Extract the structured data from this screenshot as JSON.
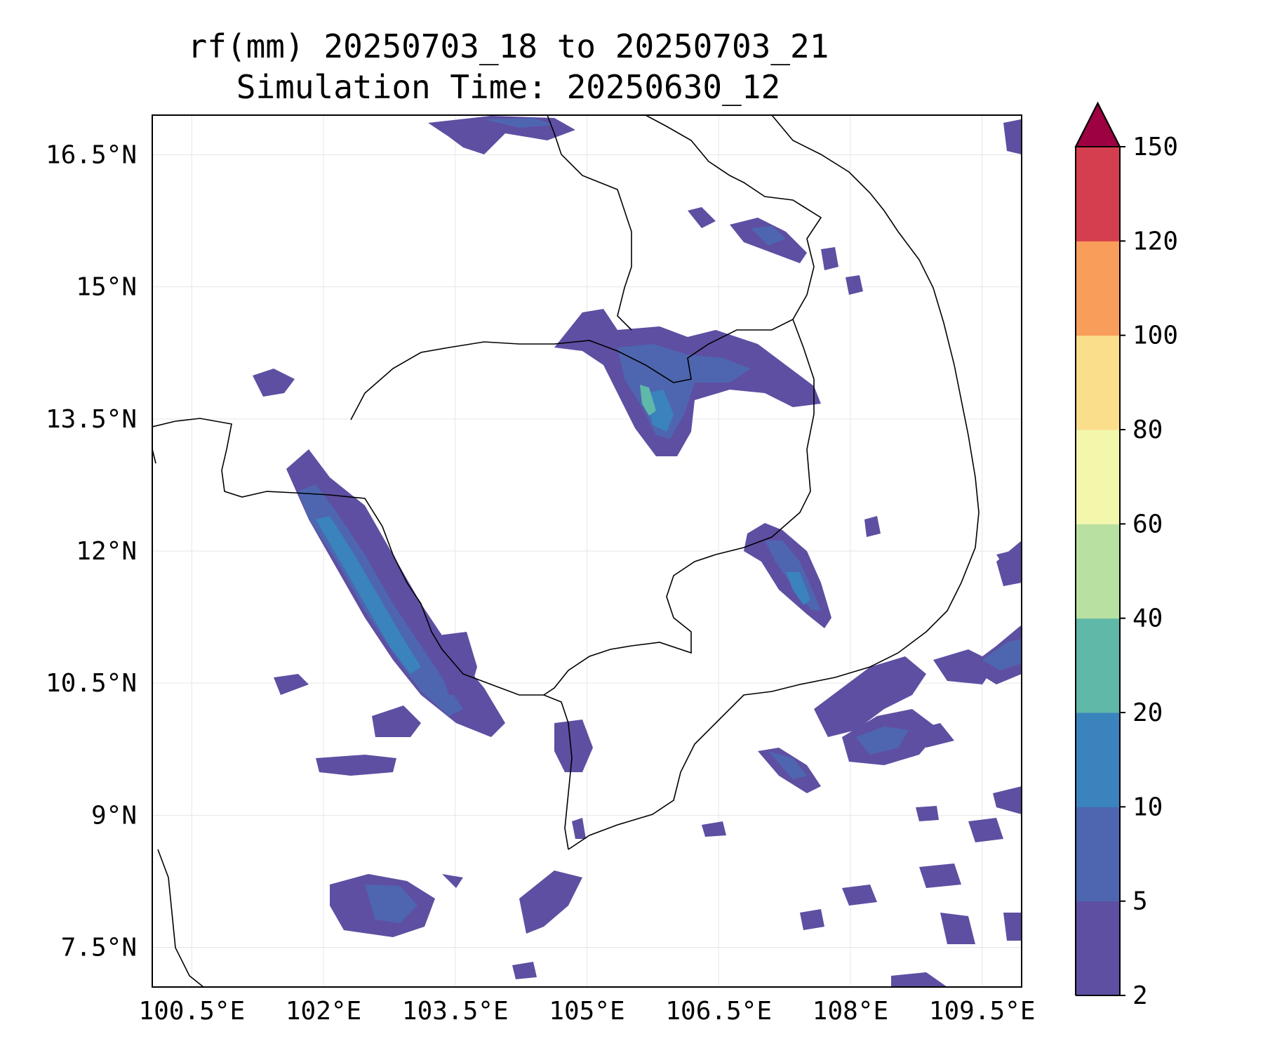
{
  "title": "rf(mm) 20250703_18 to 20250703_21",
  "subtitle": "Simulation Time: 20250630_12",
  "map": {
    "lon_range": [
      100.05,
      109.95
    ],
    "lat_range": [
      7.05,
      16.95
    ],
    "lon_ticks": [
      "100.5°E",
      "102°E",
      "103.5°E",
      "105°E",
      "106.5°E",
      "108°E",
      "109.5°E"
    ],
    "lat_ticks": [
      "16.5°N",
      "15°N",
      "13.5°N",
      "12°N",
      "10.5°N",
      "9°N",
      "7.5°N"
    ],
    "grid": true
  },
  "colorbar": {
    "levels": [
      "2",
      "5",
      "10",
      "20",
      "40",
      "60",
      "80",
      "100",
      "120",
      "150"
    ],
    "colors": [
      "#5e4fa2",
      "#4e66b0",
      "#3a83bd",
      "#5fb8a8",
      "#b8e0a0",
      "#f2f7ac",
      "#fbde8c",
      "#f99d5a",
      "#d53e4f"
    ],
    "extend_color": "#9e0142",
    "extend": "max"
  },
  "colors": {
    "coastline": "#000000",
    "gridline": "#e6e6e6"
  }
}
